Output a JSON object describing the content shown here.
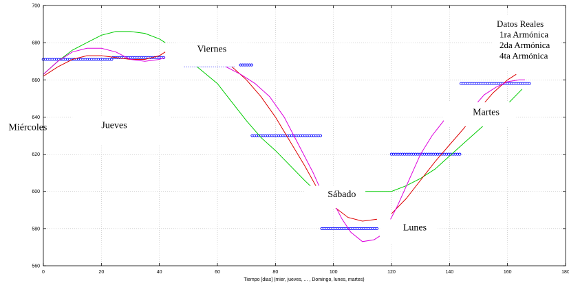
{
  "chart_data": {
    "type": "line",
    "title": "",
    "xlabel": "Tiempo [dias] (mier, jueves, ... , Domingo, lunes, martes)",
    "ylabel": "",
    "xlim": [
      0,
      180
    ],
    "ylim": [
      560,
      700
    ],
    "xticks": [
      0,
      20,
      40,
      60,
      80,
      100,
      120,
      140,
      160,
      180
    ],
    "yticks": [
      560,
      580,
      600,
      620,
      640,
      660,
      680,
      700
    ],
    "grid": true,
    "legend_title": "Datos Reales",
    "annotations": [
      {
        "text": "Miércoles",
        "x": -12,
        "y": 633
      },
      {
        "text": "Jueves",
        "x": 20,
        "y": 634
      },
      {
        "text": "Viernes",
        "x": 53,
        "y": 675
      },
      {
        "text": "Sábado",
        "x": 98,
        "y": 597
      },
      {
        "text": "Lunes",
        "x": 124,
        "y": 579
      },
      {
        "text": "Martes",
        "x": 148,
        "y": 641
      }
    ],
    "series": [
      {
        "name": "Datos Reales",
        "color": "#0000ff",
        "style": "markers",
        "segments": [
          {
            "x": [
              0,
              24
            ],
            "y": [
              671,
              671
            ]
          },
          {
            "x": [
              24,
              42
            ],
            "y": [
              672,
              672
            ]
          },
          {
            "x": [
              68,
              72
            ],
            "y": [
              668,
              668
            ]
          },
          {
            "x": [
              72,
              96
            ],
            "y": [
              630,
              630
            ]
          },
          {
            "x": [
              96,
              115
            ],
            "y": [
              580,
              580
            ]
          },
          {
            "x": [
              120,
              144
            ],
            "y": [
              620,
              620
            ]
          },
          {
            "x": [
              144,
              168
            ],
            "y": [
              658,
              658
            ]
          }
        ]
      },
      {
        "name": "1ra Armónica",
        "color": "#00cc00",
        "style": "line",
        "segments": [
          {
            "x": [
              0,
              5,
              10,
              15,
              20,
              25,
              30,
              35,
              40,
              42
            ],
            "y": [
              663,
              670,
              676,
              680,
              684,
              686,
              686,
              685,
              682,
              680
            ]
          },
          {
            "x": [
              53,
              60,
              65,
              70,
              75,
              80,
              85,
              90,
              94
            ],
            "y": [
              667,
              658,
              648,
              638,
              629,
              622,
              614,
              606,
              600
            ]
          },
          {
            "x": [
              110,
              120,
              125,
              130,
              135,
              140,
              145,
              150,
              155,
              160,
              165
            ],
            "y": [
              600,
              600,
              603,
              607,
              612,
              619,
              626,
              633,
              640,
              647,
              655
            ]
          }
        ]
      },
      {
        "name": "2da Armónica",
        "color": "#dd0000",
        "style": "line",
        "segments": [
          {
            "x": [
              0,
              5,
              10,
              15,
              20,
              25,
              30,
              35,
              40,
              42
            ],
            "y": [
              662,
              667,
              671,
              673,
              673,
              672,
              671,
              671,
              673,
              675
            ]
          },
          {
            "x": [
              65,
              70,
              75,
              80,
              85,
              90,
              95
            ],
            "y": [
              667,
              660,
              651,
              640,
              627,
              614,
              600
            ]
          },
          {
            "x": [
              100,
              105,
              110,
              115
            ],
            "y": [
              592,
              586,
              584,
              585
            ]
          },
          {
            "x": [
              120,
              125,
              130,
              135,
              140,
              145,
              150,
              155,
              160,
              163
            ],
            "y": [
              588,
              596,
              606,
              616,
              625,
              634,
              644,
              653,
              660,
              663
            ]
          }
        ]
      },
      {
        "name": "4ta Armónica",
        "color": "#dd00dd",
        "style": "line",
        "segments": [
          {
            "x": [
              0,
              5,
              10,
              15,
              20,
              25,
              30,
              35,
              40,
              42
            ],
            "y": [
              663,
              670,
              675,
              677,
              677,
              675,
              671,
              670,
              671,
              672
            ]
          },
          {
            "x": [
              63,
              68,
              73,
              78,
              83,
              88,
              93,
              95
            ],
            "y": [
              667,
              663,
              658,
              651,
              640,
              625,
              610,
              603
            ]
          },
          {
            "x": [
              100,
              103,
              106,
              110,
              114,
              116
            ],
            "y": [
              594,
              585,
              578,
              573,
              574,
              576
            ]
          },
          {
            "x": [
              118,
              122,
              126,
              130,
              134,
              138,
              140
            ],
            "y": [
              580,
              592,
              606,
              620,
              630,
              638,
              640
            ]
          },
          {
            "x": [
              148,
              152,
              156,
              160,
              164,
              166
            ],
            "y": [
              645,
              652,
              656,
              659,
              660,
              660
            ]
          }
        ]
      }
    ],
    "white_boxes": [
      {
        "x0": -15,
        "x1": -1,
        "y0": 628,
        "y1": 639
      },
      {
        "x0": 10,
        "x1": 44,
        "y0": 625,
        "y1": 641
      },
      {
        "x0": 46,
        "x1": 70,
        "y0": 670,
        "y1": 680
      },
      {
        "x0": 90,
        "x1": 111,
        "y0": 591,
        "y1": 603
      },
      {
        "x0": 116,
        "x1": 136,
        "y0": 572,
        "y1": 585
      },
      {
        "x0": 138,
        "x1": 163,
        "y0": 635,
        "y1": 648
      }
    ]
  }
}
